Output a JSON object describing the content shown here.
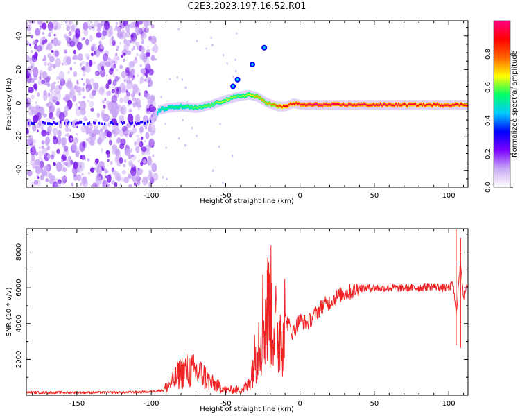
{
  "title": "C2E3.2023.197.16.52.R01",
  "colors": {
    "snr_line": "#ee2222",
    "noise_dot": "#7a1de8",
    "noise_dot_light": "#c9a6f5",
    "axis": "#000000"
  },
  "chart_data": [
    {
      "type": "heatmap",
      "title": "C2E3.2023.197.16.52.R01",
      "xlabel": "Height of straight line (km)",
      "ylabel": "Frequency (Hz)",
      "xlim": [
        -184,
        113
      ],
      "ylim": [
        -50,
        49
      ],
      "xticks": [
        -150,
        -100,
        -50,
        0,
        50,
        100
      ],
      "yticks": [
        -40,
        -20,
        0,
        20,
        40
      ],
      "colorbar": {
        "label": "Normalized spectral amplitude",
        "range": [
          0,
          1
        ],
        "ticks": [
          "0.0",
          "0.2",
          "0.4",
          "0.6",
          "0.8"
        ],
        "tick_values": [
          0,
          0.2,
          0.4,
          0.6,
          0.8
        ],
        "colormap": [
          "#ffffff",
          "#c8a8f4",
          "#7b00ff",
          "#0000ff",
          "#00ccff",
          "#00ff66",
          "#ffff00",
          "#ff6600",
          "#ff0000",
          "#ff0080"
        ]
      },
      "signal_ridge": {
        "x": [
          -180,
          -160,
          -140,
          -120,
          -110,
          -100,
          -95,
          -90,
          -80,
          -70,
          -60,
          -50,
          -42,
          -35,
          -30,
          -22,
          -15,
          -10,
          -5,
          0,
          10,
          20,
          40,
          60,
          80,
          100,
          113
        ],
        "frequency": [
          -12,
          -12,
          -12,
          -12,
          -12,
          -11,
          -4,
          -3,
          -2,
          -3,
          -1,
          2,
          4,
          5,
          4,
          0,
          -2,
          -2,
          0,
          -1,
          -1,
          -1,
          -1,
          -1,
          -1,
          -1,
          -1
        ],
        "amplitude": [
          0.3,
          0.3,
          0.3,
          0.35,
          0.35,
          0.4,
          0.45,
          0.5,
          0.5,
          0.55,
          0.55,
          0.6,
          0.55,
          0.6,
          0.7,
          0.7,
          0.8,
          0.9,
          0.9,
          0.95,
          1.0,
          0.95,
          0.95,
          0.95,
          0.9,
          0.95,
          0.9
        ]
      },
      "side_features": [
        {
          "x": -45,
          "frequency": 10
        },
        {
          "x": -42,
          "frequency": 14
        },
        {
          "x": -32,
          "frequency": 23
        },
        {
          "x": -24,
          "frequency": 33
        }
      ],
      "noise_region_x": [
        -184,
        -97
      ]
    },
    {
      "type": "line",
      "xlabel": "Height of straight line (km)",
      "ylabel": "SNR (10 * v/v)",
      "xlim": [
        -184,
        113
      ],
      "ylim": [
        0,
        9300
      ],
      "xticks": [
        -150,
        -100,
        -50,
        0,
        50,
        100
      ],
      "yticks": [
        2000,
        4000,
        6000,
        8000
      ],
      "series": [
        {
          "name": "SNR",
          "x": [
            -184,
            -160,
            -140,
            -120,
            -100,
            -92,
            -85,
            -80,
            -75,
            -70,
            -65,
            -60,
            -55,
            -50,
            -45,
            -40,
            -35,
            -30,
            -25,
            -20,
            -15,
            -10,
            -5,
            0,
            5,
            10,
            15,
            20,
            25,
            30,
            35,
            40,
            50,
            60,
            70,
            80,
            90,
            95,
            100,
            103,
            105,
            108,
            110,
            113
          ],
          "y": [
            150,
            150,
            150,
            150,
            200,
            300,
            800,
            1300,
            1400,
            1300,
            1100,
            700,
            500,
            300,
            300,
            300,
            500,
            2200,
            4200,
            5000,
            3200,
            4300,
            3500,
            4200,
            4000,
            4500,
            5000,
            5200,
            5500,
            5700,
            5800,
            6000,
            6000,
            6000,
            6000,
            6000,
            6100,
            6000,
            6000,
            6200,
            4500,
            7500,
            5500,
            6200
          ]
        }
      ],
      "annotations": [
        {
          "type": "spike",
          "x": -22,
          "y": 7000
        },
        {
          "type": "spike",
          "x": 105,
          "y": 9300
        },
        {
          "type": "spike",
          "x": 108,
          "y": 8800
        }
      ]
    }
  ]
}
